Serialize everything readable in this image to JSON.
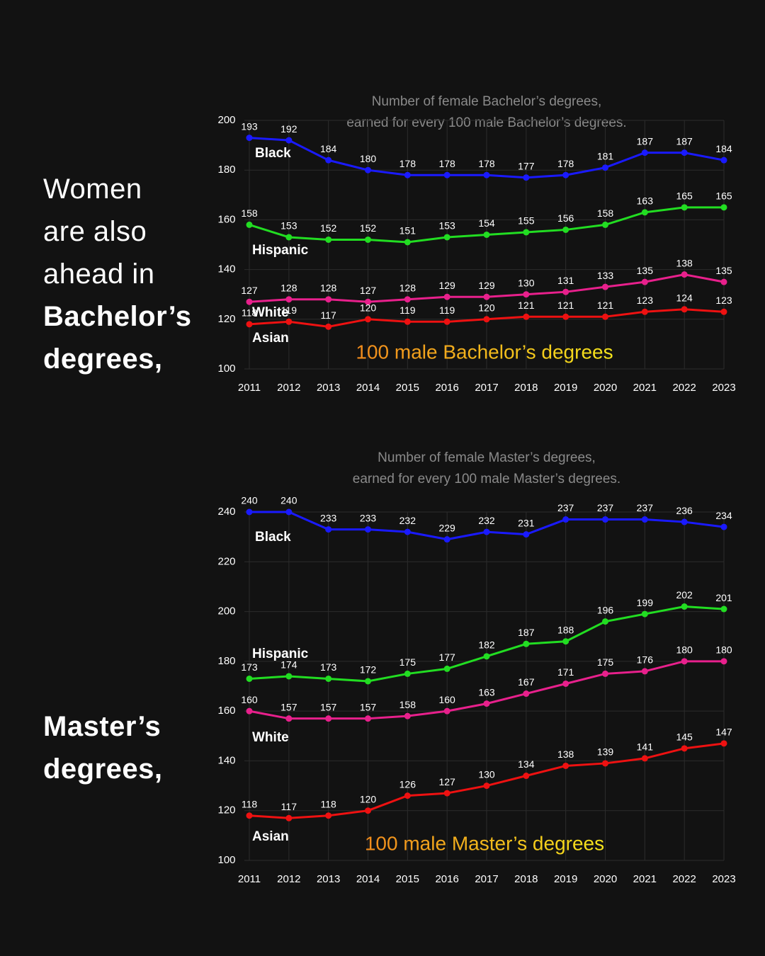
{
  "captions": [
    [
      "Women",
      "are also",
      "ahead in",
      "Bachelor’s",
      "degrees,"
    ],
    [
      "Master’s",
      "degrees,"
    ]
  ],
  "chart_data": [
    {
      "type": "line",
      "title": [
        "Number of female Bachelor’s degrees,",
        "earned for every 100 male Bachelor’s degrees."
      ],
      "x": [
        2011,
        2012,
        2013,
        2014,
        2015,
        2016,
        2017,
        2018,
        2019,
        2020,
        2021,
        2022,
        2023
      ],
      "xlim": [
        2011,
        2023
      ],
      "xticks": [
        2011,
        2012,
        2013,
        2014,
        2015,
        2016,
        2017,
        2018,
        2019,
        2020,
        2021,
        2022,
        2023
      ],
      "ylim": [
        100,
        200
      ],
      "yticks": [
        100,
        120,
        140,
        160,
        180,
        200
      ],
      "grid": true,
      "reference": {
        "value": 100,
        "label": "100 male Bachelor’s degrees"
      },
      "series": [
        {
          "name": "Black",
          "color": "#1a1aff",
          "values": [
            193,
            192,
            184,
            180,
            178,
            178,
            178,
            177,
            178,
            181,
            187,
            187,
            184
          ]
        },
        {
          "name": "Hispanic",
          "color": "#22dd22",
          "values": [
            158,
            153,
            152,
            152,
            151,
            153,
            154,
            155,
            156,
            158,
            163,
            165,
            165
          ]
        },
        {
          "name": "White",
          "color": "#e8208c",
          "values": [
            127,
            128,
            128,
            127,
            128,
            129,
            129,
            130,
            131,
            133,
            135,
            138,
            135
          ]
        },
        {
          "name": "Asian",
          "color": "#ee1111",
          "values": [
            118,
            119,
            117,
            120,
            119,
            119,
            120,
            121,
            121,
            121,
            123,
            124,
            123
          ]
        }
      ]
    },
    {
      "type": "line",
      "title": [
        "Number of female Master’s degrees,",
        "earned for every 100 male Master’s degrees."
      ],
      "x": [
        2011,
        2012,
        2013,
        2014,
        2015,
        2016,
        2017,
        2018,
        2019,
        2020,
        2021,
        2022,
        2023
      ],
      "xlim": [
        2011,
        2023
      ],
      "xticks": [
        2011,
        2012,
        2013,
        2014,
        2015,
        2016,
        2017,
        2018,
        2019,
        2020,
        2021,
        2022,
        2023
      ],
      "ylim": [
        100,
        240
      ],
      "yticks": [
        100,
        120,
        140,
        160,
        180,
        200,
        220,
        240
      ],
      "grid": true,
      "reference": {
        "value": 100,
        "label": "100 male Master’s degrees"
      },
      "series": [
        {
          "name": "Black",
          "color": "#1a1aff",
          "values": [
            240,
            240,
            233,
            233,
            232,
            229,
            232,
            231,
            237,
            237,
            237,
            236,
            234
          ]
        },
        {
          "name": "Hispanic",
          "color": "#22dd22",
          "values": [
            173,
            174,
            173,
            172,
            175,
            177,
            182,
            187,
            188,
            196,
            199,
            202,
            201
          ]
        },
        {
          "name": "White",
          "color": "#e8208c",
          "values": [
            160,
            157,
            157,
            157,
            158,
            160,
            163,
            167,
            171,
            175,
            176,
            180,
            180
          ]
        },
        {
          "name": "Asian",
          "color": "#ee1111",
          "values": [
            118,
            117,
            118,
            120,
            126,
            127,
            130,
            134,
            138,
            139,
            141,
            145,
            147
          ]
        }
      ]
    }
  ]
}
